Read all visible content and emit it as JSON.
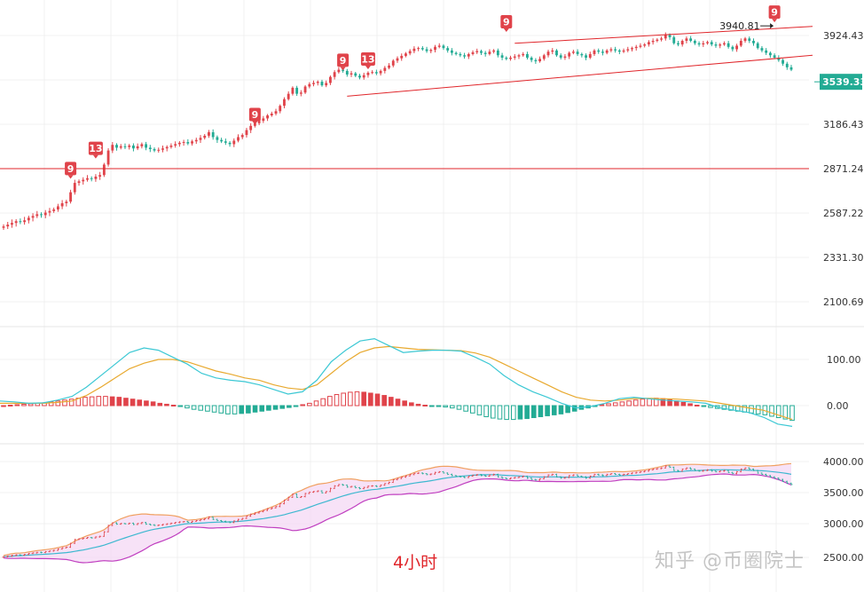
{
  "caption": "4小时",
  "watermark": "知乎 @币圈院士",
  "colors": {
    "up": "#e0434a",
    "down": "#22ab94",
    "trend": "#e0262b",
    "diff": "#3cc8d4",
    "dea": "#e8a92f",
    "band_upper": "#f0a060",
    "band_lower": "#c03fc0",
    "band_mid": "#3db8d0",
    "band_fill": "#f4d5f4"
  },
  "chart_data": [
    {
      "type": "candlestick",
      "title": "",
      "y_ticks": [
        "3924.43",
        "3186.43",
        "2871.24",
        "2587.22",
        "2331.30",
        "2100.69"
      ],
      "current_price": "3539.33",
      "annotation": "3940.81",
      "horizontal_line": 2871.24,
      "td_markers": [
        {
          "label": "9",
          "x": 16,
          "y": 2750
        },
        {
          "label": "13",
          "x": 22,
          "y": 2880
        },
        {
          "label": "9",
          "x": 60,
          "y": 3120
        },
        {
          "label": "9",
          "x": 81,
          "y": 3560
        },
        {
          "label": "13",
          "x": 87,
          "y": 3570
        },
        {
          "label": "9",
          "x": 120,
          "y": 3880
        },
        {
          "label": "9",
          "x": 184,
          "y": 3960
        }
      ],
      "trendlines": [
        {
          "from": [
            82,
            3420
          ],
          "to": [
            230,
            3760
          ]
        },
        {
          "from": [
            122,
            3860
          ],
          "to": [
            230,
            4000
          ]
        }
      ],
      "closes": [
        2510,
        2520,
        2530,
        2540,
        2535,
        2545,
        2560,
        2570,
        2580,
        2575,
        2590,
        2600,
        2610,
        2630,
        2650,
        2660,
        2720,
        2780,
        2790,
        2800,
        2810,
        2805,
        2820,
        2830,
        2900,
        3000,
        3040,
        3020,
        3030,
        3025,
        3035,
        3015,
        3030,
        3045,
        3020,
        3010,
        3000,
        3005,
        3015,
        3025,
        3035,
        3045,
        3055,
        3060,
        3050,
        3065,
        3075,
        3090,
        3105,
        3130,
        3095,
        3075,
        3065,
        3055,
        3045,
        3070,
        3095,
        3110,
        3145,
        3175,
        3195,
        3215,
        3235,
        3260,
        3275,
        3295,
        3340,
        3395,
        3440,
        3490,
        3440,
        3450,
        3500,
        3520,
        3530,
        3540,
        3510,
        3530,
        3580,
        3620,
        3640,
        3630,
        3600,
        3610,
        3590,
        3575,
        3595,
        3615,
        3620,
        3610,
        3630,
        3655,
        3675,
        3715,
        3735,
        3755,
        3775,
        3795,
        3815,
        3820,
        3810,
        3795,
        3805,
        3830,
        3840,
        3820,
        3800,
        3780,
        3770,
        3760,
        3750,
        3770,
        3785,
        3795,
        3780,
        3770,
        3790,
        3800,
        3760,
        3740,
        3730,
        3740,
        3750,
        3760,
        3770,
        3740,
        3720,
        3710,
        3730,
        3760,
        3790,
        3800,
        3760,
        3740,
        3750,
        3780,
        3790,
        3770,
        3760,
        3740,
        3770,
        3800,
        3790,
        3780,
        3800,
        3810,
        3800,
        3790,
        3800,
        3810,
        3820,
        3830,
        3840,
        3850,
        3870,
        3880,
        3890,
        3900,
        3930,
        3910,
        3860,
        3850,
        3880,
        3900,
        3880,
        3860,
        3850,
        3860,
        3870,
        3850,
        3840,
        3850,
        3860,
        3830,
        3810,
        3840,
        3880,
        3900,
        3880,
        3860,
        3820,
        3800,
        3780,
        3760,
        3740,
        3720,
        3690,
        3660,
        3640
      ],
      "opens_offset_note": ""
    },
    {
      "type": "macd",
      "y_ticks": [
        "100.00",
        "0.00"
      ],
      "diff": [
        10,
        8,
        5,
        6,
        12,
        20,
        40,
        65,
        90,
        115,
        125,
        120,
        105,
        90,
        70,
        60,
        55,
        52,
        45,
        35,
        25,
        30,
        55,
        95,
        120,
        140,
        145,
        130,
        115,
        118,
        120,
        120,
        118,
        105,
        90,
        65,
        45,
        30,
        18,
        5,
        -5,
        -2,
        5,
        15,
        18,
        15,
        12,
        10,
        8,
        5,
        -5,
        -10,
        -15,
        -25,
        -40,
        -45
      ],
      "dea": [
        5,
        5,
        5,
        5,
        7,
        10,
        22,
        40,
        60,
        80,
        92,
        100,
        100,
        95,
        85,
        75,
        68,
        60,
        55,
        45,
        38,
        35,
        45,
        70,
        95,
        115,
        125,
        128,
        125,
        122,
        121,
        120,
        119,
        114,
        105,
        90,
        75,
        60,
        45,
        30,
        18,
        12,
        10,
        12,
        15,
        16,
        15,
        14,
        12,
        10,
        5,
        0,
        -5,
        -10,
        -20,
        -30
      ],
      "hist": [
        0,
        1,
        2,
        3,
        4,
        5,
        6,
        8,
        10,
        12,
        14,
        16,
        18,
        19,
        20,
        20,
        19,
        18,
        16,
        14,
        12,
        10,
        8,
        5,
        3,
        1,
        -2,
        -5,
        -8,
        -10,
        -12,
        -14,
        -16,
        -18,
        -18,
        -17,
        -16,
        -14,
        -12,
        -10,
        -8,
        -6,
        -4,
        -2,
        2,
        5,
        10,
        15,
        20,
        24,
        27,
        29,
        30,
        29,
        27,
        25,
        22,
        18,
        14,
        10,
        6,
        3,
        1,
        -1,
        -2,
        -3,
        -5,
        -8,
        -12,
        -16,
        -20,
        -24,
        -27,
        -29,
        -30,
        -30,
        -29,
        -28,
        -26,
        -24,
        -22,
        -20,
        -18,
        -15,
        -12,
        -8,
        -5,
        -2,
        2,
        4,
        6,
        8,
        10,
        12,
        14,
        15,
        16,
        15,
        13,
        10,
        7,
        4,
        1,
        -2,
        -4,
        -6,
        -8,
        -10,
        -12,
        -14,
        -16,
        -18,
        -20,
        -23,
        -26,
        -29,
        -32
      ]
    },
    {
      "type": "bollinger",
      "y_ticks": [
        "4000.00",
        "3500.00",
        "3000.00",
        "2500.00"
      ]
    }
  ]
}
